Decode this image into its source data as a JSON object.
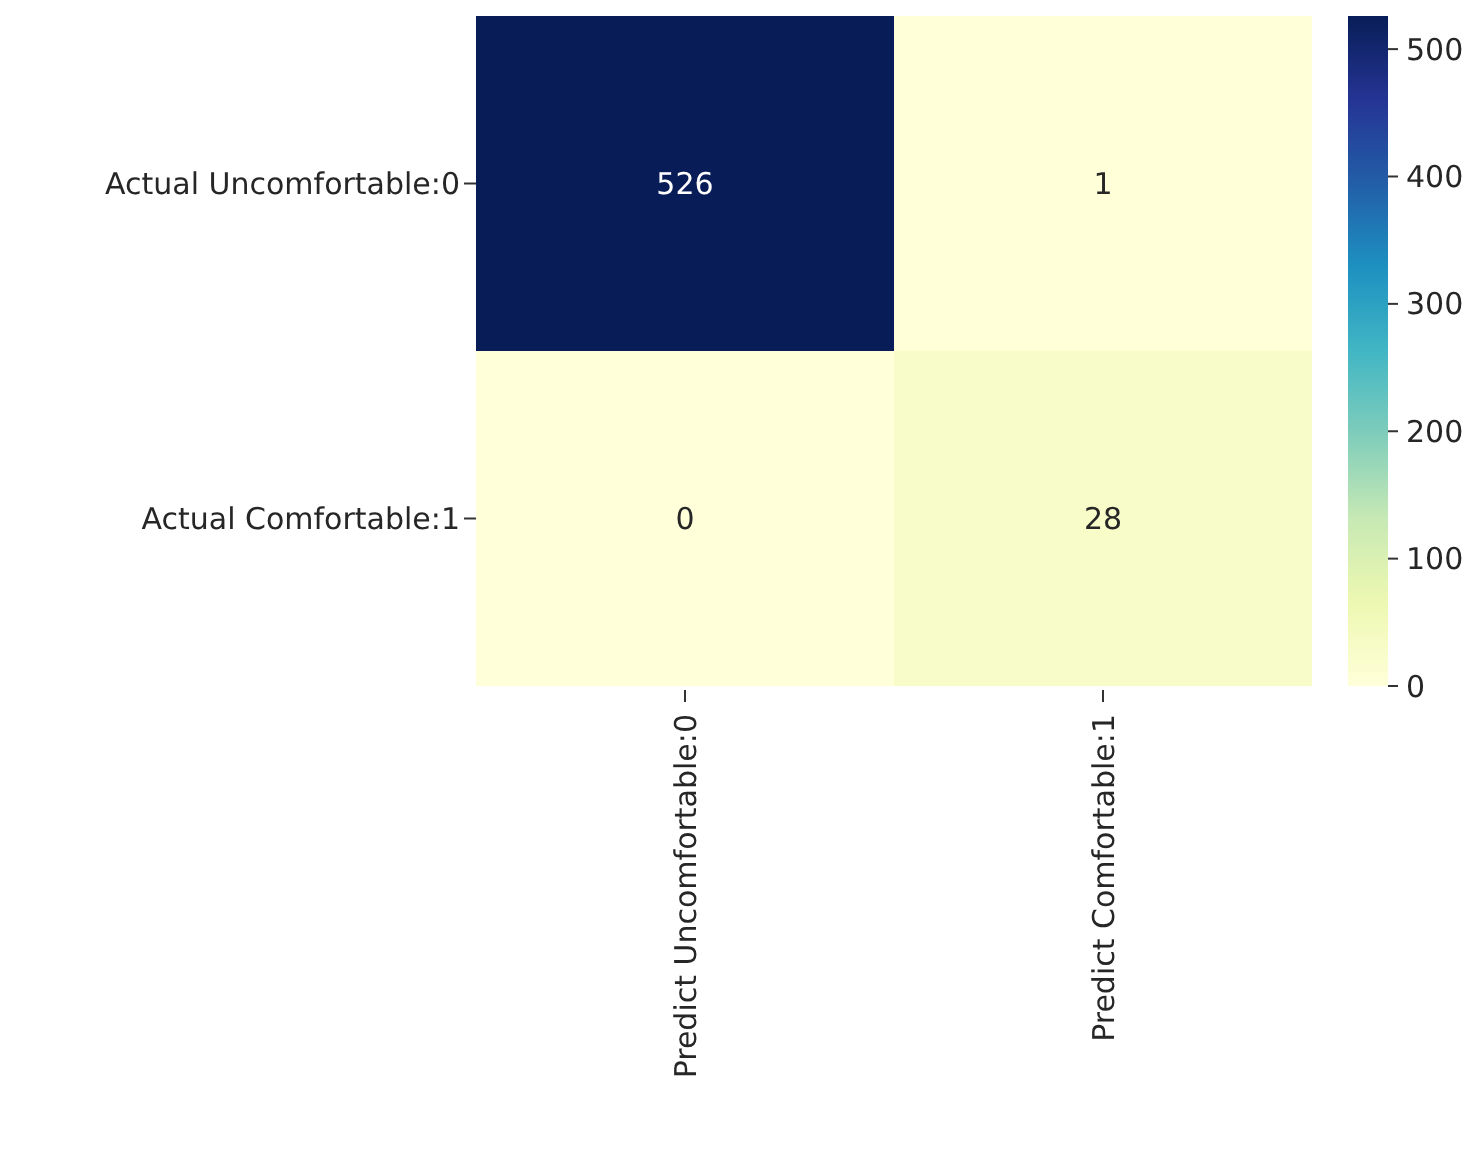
{
  "chart_data": {
    "type": "heatmap",
    "categories": [
      "Predict Uncomfortable:0",
      "Predict Comfortable:1"
    ],
    "y_categories": [
      "Actual Uncomfortable:0",
      "Actual Comfortable:1"
    ],
    "cells": [
      [
        526,
        1
      ],
      [
        0,
        28
      ]
    ],
    "data_labels": true,
    "clim": [
      0,
      526
    ],
    "cticks": [
      0,
      100,
      200,
      300,
      400,
      500
    ]
  }
}
